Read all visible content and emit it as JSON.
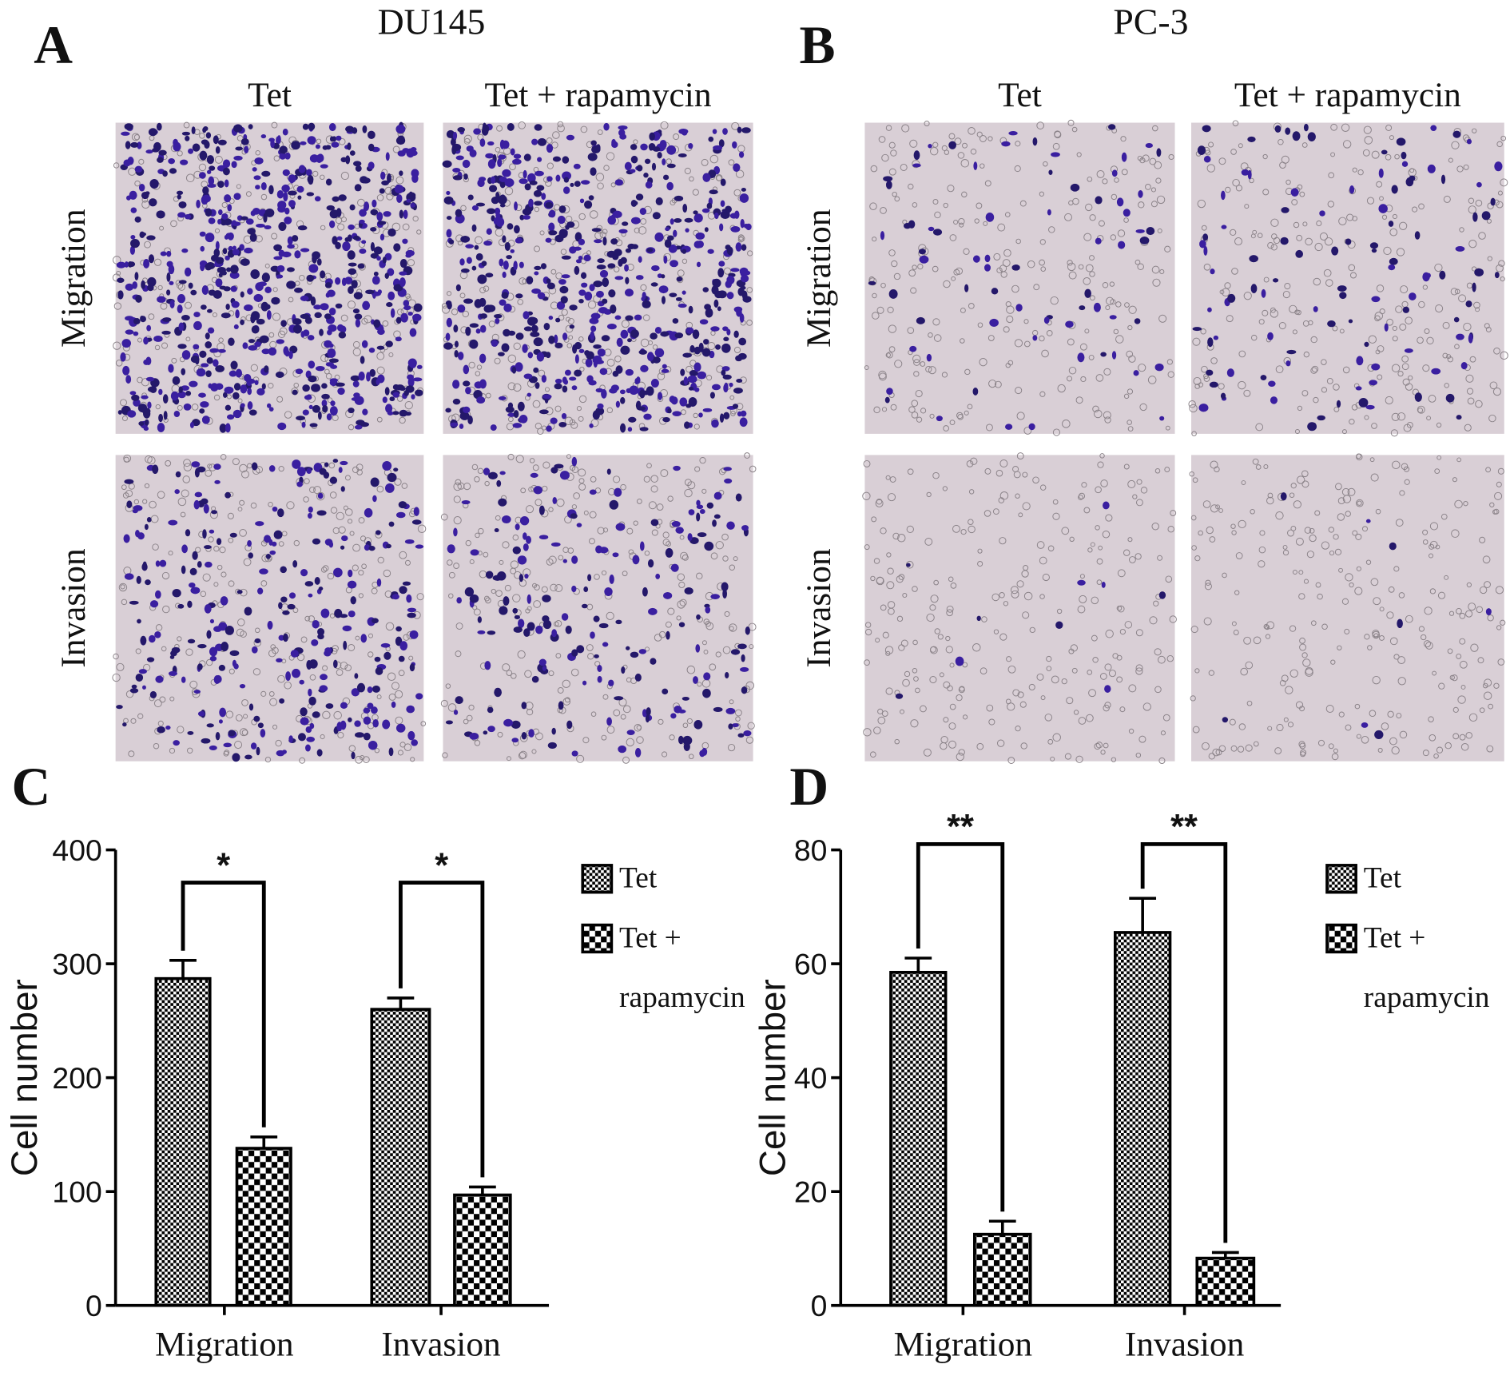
{
  "panels": [
    {
      "letter": "A",
      "title": "DU145",
      "columns": [
        "Tet",
        "Tet + rapamycin"
      ],
      "rows": [
        "Migration",
        "Invasion"
      ]
    },
    {
      "letter": "B",
      "title": "PC-3",
      "columns": [
        "Tet",
        "Tet + rapamycin"
      ],
      "rows": [
        "Migration",
        "Invasion"
      ]
    }
  ],
  "chart_data": [
    {
      "type": "bar",
      "panel": "C",
      "ylabel": "Cell number",
      "categories": [
        "Migration",
        "Invasion"
      ],
      "series": [
        {
          "name": "Tet",
          "color": "#000000",
          "values": [
            287,
            260
          ],
          "errors": [
            16,
            10
          ]
        },
        {
          "name": "Tet + rapamycin",
          "color": "#000000",
          "values": [
            138,
            97
          ],
          "errors": [
            10,
            7
          ]
        }
      ],
      "ylim": [
        0,
        400
      ],
      "yticks": [
        0,
        100,
        200,
        300,
        400
      ],
      "annotations": [
        "*",
        "*"
      ]
    },
    {
      "type": "bar",
      "panel": "D",
      "ylabel": "Cell number",
      "categories": [
        "Migration",
        "Invasion"
      ],
      "series": [
        {
          "name": "Tet",
          "color": "#000000",
          "values": [
            58.5,
            65.5
          ],
          "errors": [
            2.5,
            6
          ]
        },
        {
          "name": "Tet + rapamycin",
          "color": "#000000",
          "values": [
            12.5,
            8.3
          ],
          "errors": [
            2.3,
            1
          ]
        }
      ],
      "ylim": [
        0,
        80
      ],
      "yticks": [
        0,
        20,
        40,
        60,
        80
      ],
      "annotations": [
        "**",
        "**"
      ]
    }
  ]
}
